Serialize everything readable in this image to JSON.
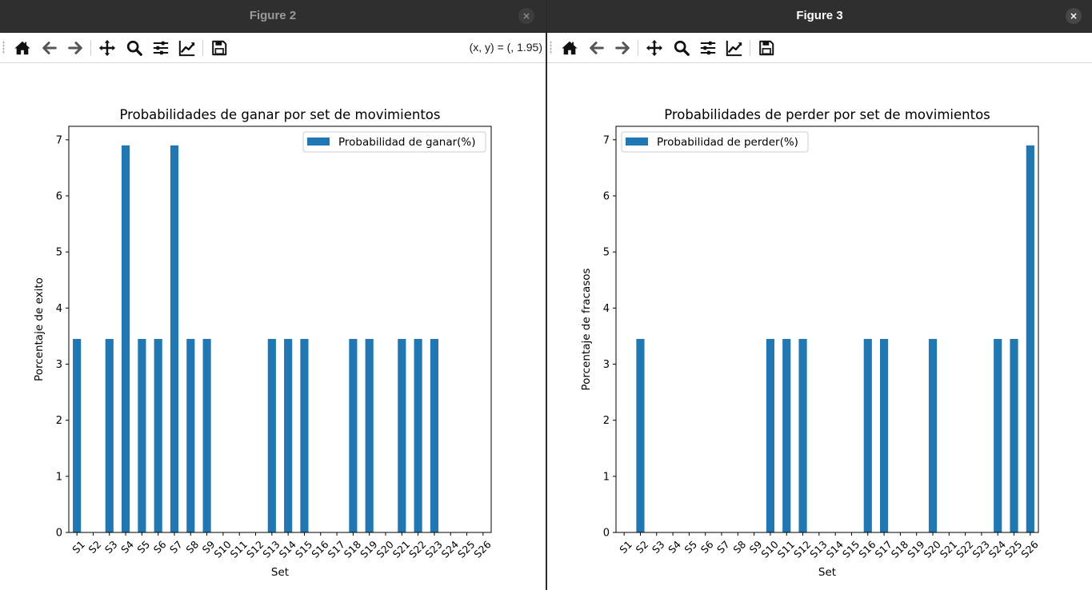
{
  "windows": [
    {
      "title": "Figure 2",
      "active": false,
      "close_label": "×",
      "status_text": "(x, y) = (, 1.95)",
      "toolbar_icons": [
        "home-icon",
        "back-arrow-icon",
        "forward-arrow-icon",
        "pan-move-icon",
        "zoom-magnifier-icon",
        "configure-subplots-icon",
        "edit-axis-icon",
        "save-floppy-icon"
      ],
      "chart_data": {
        "type": "bar",
        "title": "Probabilidades de ganar por set de movimientos",
        "xlabel": "Set",
        "ylabel": "Porcentaje de exito",
        "categories": [
          "S1",
          "S2",
          "S3",
          "S4",
          "S5",
          "S6",
          "S7",
          "S8",
          "S9",
          "S10",
          "S11",
          "S12",
          "S13",
          "S14",
          "S15",
          "S16",
          "S17",
          "S18",
          "S19",
          "S20",
          "S21",
          "S22",
          "S23",
          "S24",
          "S25",
          "S26"
        ],
        "series": [
          {
            "name": "Probabilidad de ganar(%)",
            "values": [
              3.45,
              0,
              3.45,
              6.9,
              3.45,
              3.45,
              6.9,
              3.45,
              3.45,
              0,
              0,
              0,
              3.45,
              3.45,
              3.45,
              0,
              0,
              3.45,
              3.45,
              0,
              3.45,
              3.45,
              3.45,
              0,
              0,
              0
            ],
            "color": "#1f77b4"
          }
        ],
        "ylim": [
          0,
          7.24
        ],
        "yticks": [
          "0",
          "1",
          "2",
          "3",
          "4",
          "5",
          "6",
          "7"
        ],
        "legend_position": "upper right",
        "grid": false
      }
    },
    {
      "title": "Figure 3",
      "active": true,
      "close_label": "×",
      "status_text": "",
      "toolbar_icons": [
        "home-icon",
        "back-arrow-icon",
        "forward-arrow-icon",
        "pan-move-icon",
        "zoom-magnifier-icon",
        "configure-subplots-icon",
        "edit-axis-icon",
        "save-floppy-icon"
      ],
      "chart_data": {
        "type": "bar",
        "title": "Probabilidades de perder por set de movimientos",
        "xlabel": "Set",
        "ylabel": "Porcentaje de fracasos",
        "categories": [
          "S1",
          "S2",
          "S3",
          "S4",
          "S5",
          "S6",
          "S7",
          "S8",
          "S9",
          "S10",
          "S11",
          "S12",
          "S13",
          "S14",
          "S15",
          "S16",
          "S17",
          "S18",
          "S19",
          "S20",
          "S21",
          "S22",
          "S23",
          "S24",
          "S25",
          "S26"
        ],
        "series": [
          {
            "name": "Probabilidad de perder(%)",
            "values": [
              0,
              3.45,
              0,
              0,
              0,
              0,
              0,
              0,
              0,
              3.45,
              3.45,
              3.45,
              0,
              0,
              0,
              3.45,
              3.45,
              0,
              0,
              3.45,
              0,
              0,
              0,
              3.45,
              3.45,
              6.9
            ],
            "color": "#1f77b4"
          }
        ],
        "ylim": [
          0,
          7.24
        ],
        "yticks": [
          "0",
          "1",
          "2",
          "3",
          "4",
          "5",
          "6",
          "7"
        ],
        "legend_position": "upper left",
        "grid": false
      }
    }
  ]
}
